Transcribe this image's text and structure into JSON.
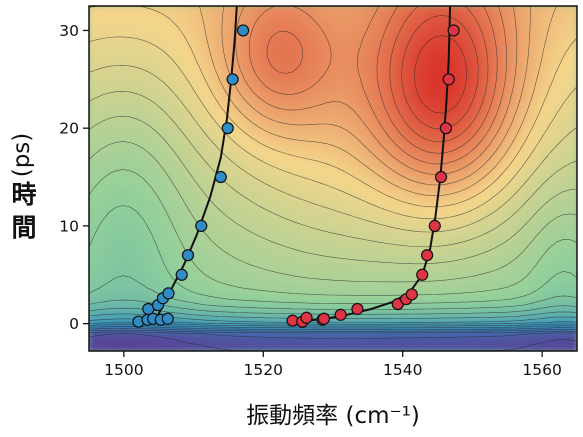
{
  "chart_data": {
    "type": "contour",
    "xlabel": "振動頻率 (cm⁻¹)",
    "ylabel_main": "時間",
    "ylabel_unit": "(ps)",
    "xlim": [
      1495,
      1565
    ],
    "ylim": [
      -2.8,
      32.5
    ],
    "xticks": [
      1500,
      1520,
      1540,
      1560
    ],
    "yticks": [
      0,
      10,
      20,
      30
    ],
    "colors": {
      "low": "#5b3f96",
      "mid_low": "#2d8fbf",
      "mid": "#8fcf9b",
      "mid_high": "#f4d58a",
      "high": "#d9352b",
      "series_blue": "#2f8cc4",
      "series_red": "#dc3545"
    },
    "series": [
      {
        "points": [
          {
            "x": 1502.1,
            "y": 0.2
          },
          {
            "x": 1503.4,
            "y": 0.4
          },
          {
            "x": 1504.2,
            "y": 0.5
          },
          {
            "x": 1505.3,
            "y": 0.4
          },
          {
            "x": 1506.3,
            "y": 0.5
          },
          {
            "x": 1503.5,
            "y": 1.5
          },
          {
            "x": 1504.9,
            "y": 1.9
          },
          {
            "x": 1505.6,
            "y": 2.6
          },
          {
            "x": 1506.4,
            "y": 3.1
          },
          {
            "x": 1508.3,
            "y": 5.0
          },
          {
            "x": 1509.2,
            "y": 7.0
          },
          {
            "x": 1511.1,
            "y": 10.0
          },
          {
            "x": 1513.9,
            "y": 15.0
          },
          {
            "x": 1514.9,
            "y": 20.0
          },
          {
            "x": 1515.6,
            "y": 25.0
          },
          {
            "x": 1517.1,
            "y": 30.0
          }
        ],
        "fit": [
          {
            "x": 1504.5,
            "y": 0.0
          },
          {
            "x": 1505.0,
            "y": 1.0
          },
          {
            "x": 1505.8,
            "y": 2.2
          },
          {
            "x": 1507.0,
            "y": 3.8
          },
          {
            "x": 1508.6,
            "y": 6.0
          },
          {
            "x": 1510.4,
            "y": 9.0
          },
          {
            "x": 1512.4,
            "y": 13.0
          },
          {
            "x": 1513.9,
            "y": 17.0
          },
          {
            "x": 1514.8,
            "y": 21.0
          },
          {
            "x": 1515.4,
            "y": 25.0
          },
          {
            "x": 1515.9,
            "y": 29.0
          },
          {
            "x": 1516.2,
            "y": 32.5
          }
        ]
      },
      {
        "points": [
          {
            "x": 1524.2,
            "y": 0.3
          },
          {
            "x": 1525.6,
            "y": 0.2
          },
          {
            "x": 1526.2,
            "y": 0.6
          },
          {
            "x": 1528.5,
            "y": 0.4
          },
          {
            "x": 1528.7,
            "y": 0.5
          },
          {
            "x": 1531.1,
            "y": 0.9
          },
          {
            "x": 1533.5,
            "y": 1.5
          },
          {
            "x": 1539.3,
            "y": 2.0
          },
          {
            "x": 1540.5,
            "y": 2.5
          },
          {
            "x": 1541.3,
            "y": 3.0
          },
          {
            "x": 1542.8,
            "y": 5.0
          },
          {
            "x": 1543.5,
            "y": 7.0
          },
          {
            "x": 1544.6,
            "y": 10.0
          },
          {
            "x": 1545.5,
            "y": 15.0
          },
          {
            "x": 1546.2,
            "y": 20.0
          },
          {
            "x": 1546.6,
            "y": 25.0
          },
          {
            "x": 1547.3,
            "y": 30.0
          }
        ],
        "fit": [
          {
            "x": 1526.0,
            "y": 0.3
          },
          {
            "x": 1529.0,
            "y": 0.5
          },
          {
            "x": 1532.0,
            "y": 0.9
          },
          {
            "x": 1535.5,
            "y": 1.5
          },
          {
            "x": 1538.5,
            "y": 2.2
          },
          {
            "x": 1541.0,
            "y": 3.2
          },
          {
            "x": 1542.8,
            "y": 5.0
          },
          {
            "x": 1543.9,
            "y": 7.5
          },
          {
            "x": 1544.7,
            "y": 11.0
          },
          {
            "x": 1545.4,
            "y": 15.0
          },
          {
            "x": 1545.9,
            "y": 19.0
          },
          {
            "x": 1546.3,
            "y": 23.0
          },
          {
            "x": 1546.6,
            "y": 27.0
          },
          {
            "x": 1546.8,
            "y": 32.5
          }
        ]
      }
    ],
    "contour_lines": 28,
    "grid": false,
    "legend": "none"
  }
}
